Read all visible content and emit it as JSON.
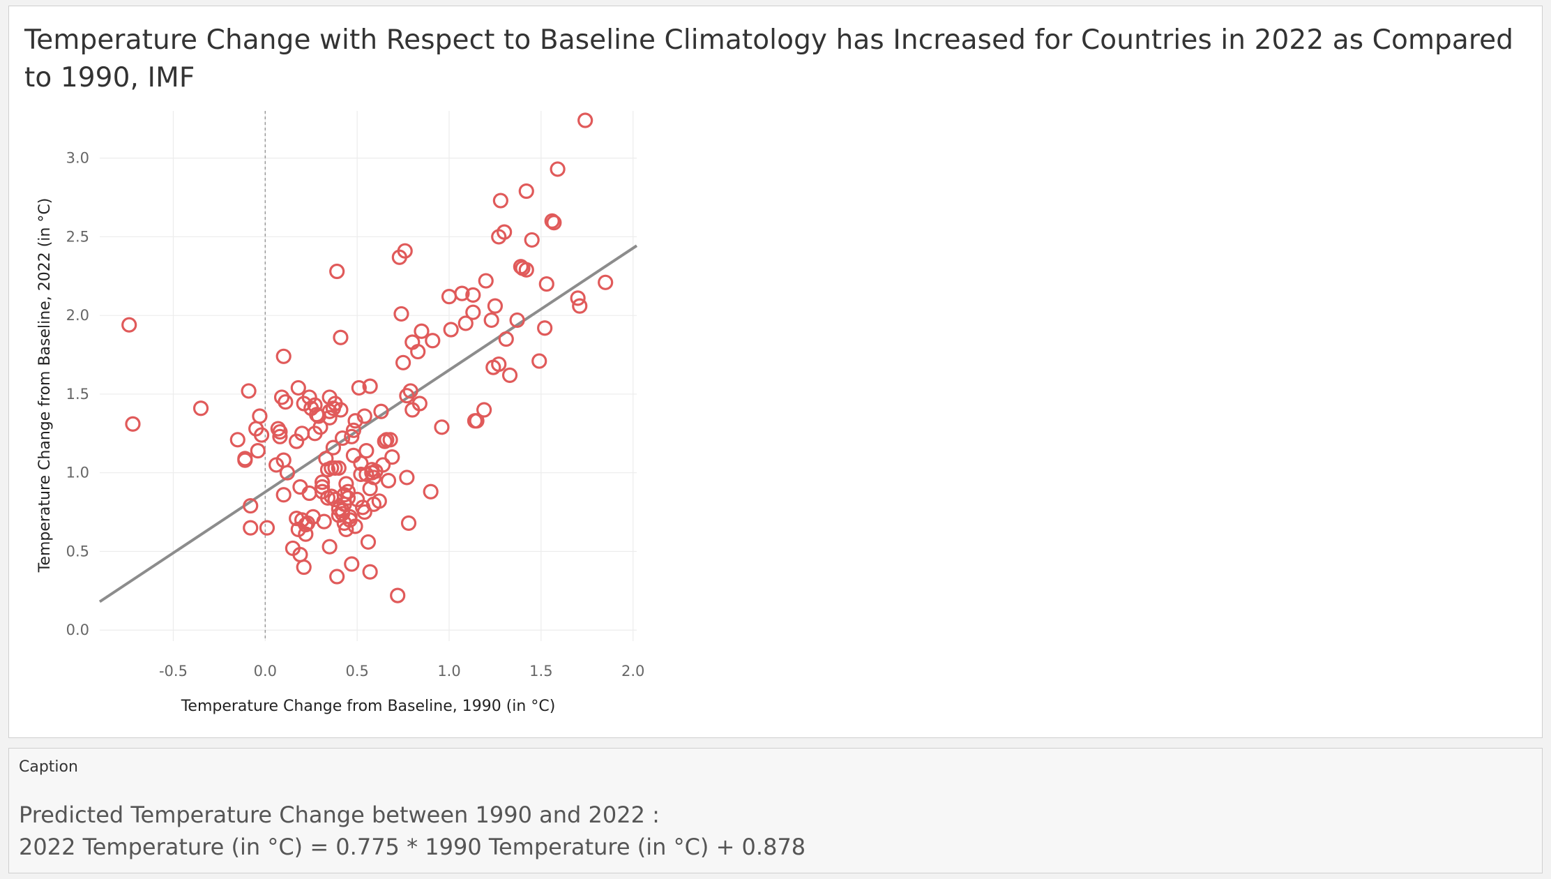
{
  "title": "Temperature Change with Respect to Baseline Climatology has Increased for Countries in 2022 as Compared to 1990, IMF",
  "chart_data": {
    "type": "scatter",
    "xlabel": "Temperature Change from Baseline, 1990 (in °C)",
    "ylabel": "Temperature Change from Baseline, 2022 (in °C)",
    "xlim": [
      -0.9,
      2.02
    ],
    "ylim": [
      -0.07,
      3.3
    ],
    "x_ticks": [
      "-0.5",
      "0.0",
      "0.5",
      "1.0",
      "1.5",
      "2.0"
    ],
    "y_ticks": [
      "0.0",
      "0.5",
      "1.0",
      "1.5",
      "2.0",
      "2.5",
      "3.0"
    ],
    "reference_line_x": 0,
    "grid": true,
    "marker": "hollow-circle",
    "marker_color": "#e05a5a",
    "trend_color": "#8c8c8c",
    "trend_line": {
      "slope": 0.775,
      "intercept": 0.878
    },
    "points": [
      [
        -0.74,
        1.94
      ],
      [
        -0.72,
        1.31
      ],
      [
        -0.35,
        1.41
      ],
      [
        -0.15,
        1.21
      ],
      [
        -0.11,
        1.08
      ],
      [
        -0.11,
        1.09
      ],
      [
        -0.09,
        1.52
      ],
      [
        -0.08,
        0.79
      ],
      [
        -0.08,
        0.65
      ],
      [
        -0.05,
        1.28
      ],
      [
        -0.04,
        1.14
      ],
      [
        -0.03,
        1.36
      ],
      [
        -0.02,
        1.24
      ],
      [
        0.01,
        0.65
      ],
      [
        0.06,
        1.05
      ],
      [
        0.07,
        1.28
      ],
      [
        0.08,
        1.26
      ],
      [
        0.08,
        1.23
      ],
      [
        0.09,
        1.48
      ],
      [
        0.1,
        1.08
      ],
      [
        0.1,
        0.86
      ],
      [
        0.1,
        1.74
      ],
      [
        0.11,
        1.45
      ],
      [
        0.12,
        1.0
      ],
      [
        0.15,
        0.52
      ],
      [
        0.17,
        1.2
      ],
      [
        0.17,
        0.71
      ],
      [
        0.18,
        0.64
      ],
      [
        0.18,
        1.54
      ],
      [
        0.19,
        0.91
      ],
      [
        0.19,
        0.48
      ],
      [
        0.2,
        1.25
      ],
      [
        0.2,
        0.7
      ],
      [
        0.21,
        1.44
      ],
      [
        0.21,
        0.4
      ],
      [
        0.22,
        0.61
      ],
      [
        0.22,
        0.67
      ],
      [
        0.23,
        0.68
      ],
      [
        0.24,
        1.48
      ],
      [
        0.24,
        0.87
      ],
      [
        0.25,
        1.41
      ],
      [
        0.26,
        0.72
      ],
      [
        0.27,
        1.25
      ],
      [
        0.27,
        1.43
      ],
      [
        0.28,
        1.37
      ],
      [
        0.29,
        1.36
      ],
      [
        0.3,
        1.29
      ],
      [
        0.31,
        0.88
      ],
      [
        0.31,
        0.94
      ],
      [
        0.31,
        0.91
      ],
      [
        0.32,
        0.69
      ],
      [
        0.33,
        1.09
      ],
      [
        0.34,
        1.02
      ],
      [
        0.34,
        0.84
      ],
      [
        0.35,
        1.35
      ],
      [
        0.35,
        1.39
      ],
      [
        0.35,
        1.48
      ],
      [
        0.35,
        0.53
      ],
      [
        0.36,
        0.85
      ],
      [
        0.36,
        1.03
      ],
      [
        0.37,
        1.16
      ],
      [
        0.37,
        1.41
      ],
      [
        0.38,
        1.03
      ],
      [
        0.38,
        1.44
      ],
      [
        0.38,
        0.83
      ],
      [
        0.39,
        0.34
      ],
      [
        0.39,
        2.28
      ],
      [
        0.4,
        1.03
      ],
      [
        0.4,
        0.73
      ],
      [
        0.4,
        0.77
      ],
      [
        0.41,
        1.86
      ],
      [
        0.41,
        1.4
      ],
      [
        0.42,
        1.22
      ],
      [
        0.42,
        0.74
      ],
      [
        0.42,
        0.76
      ],
      [
        0.43,
        0.8
      ],
      [
        0.43,
        0.86
      ],
      [
        0.43,
        0.68
      ],
      [
        0.44,
        0.64
      ],
      [
        0.44,
        0.93
      ],
      [
        0.45,
        0.84
      ],
      [
        0.45,
        0.88
      ],
      [
        0.46,
        0.72
      ],
      [
        0.46,
        0.7
      ],
      [
        0.47,
        0.42
      ],
      [
        0.47,
        1.23
      ],
      [
        0.48,
        1.27
      ],
      [
        0.48,
        1.11
      ],
      [
        0.49,
        0.66
      ],
      [
        0.49,
        1.33
      ],
      [
        0.5,
        0.83
      ],
      [
        0.51,
        1.54
      ],
      [
        0.52,
        0.99
      ],
      [
        0.52,
        1.06
      ],
      [
        0.53,
        0.78
      ],
      [
        0.54,
        1.36
      ],
      [
        0.54,
        0.75
      ],
      [
        0.55,
        0.99
      ],
      [
        0.55,
        1.14
      ],
      [
        0.56,
        0.56
      ],
      [
        0.57,
        0.37
      ],
      [
        0.57,
        1.55
      ],
      [
        0.57,
        0.9
      ],
      [
        0.58,
        1.0
      ],
      [
        0.58,
        1.02
      ],
      [
        0.59,
        0.97
      ],
      [
        0.59,
        0.8
      ],
      [
        0.6,
        1.01
      ],
      [
        0.62,
        0.82
      ],
      [
        0.63,
        1.39
      ],
      [
        0.64,
        1.05
      ],
      [
        0.65,
        1.2
      ],
      [
        0.66,
        1.21
      ],
      [
        0.67,
        0.95
      ],
      [
        0.68,
        1.21
      ],
      [
        0.69,
        1.1
      ],
      [
        0.72,
        0.22
      ],
      [
        0.73,
        2.37
      ],
      [
        0.74,
        2.01
      ],
      [
        0.75,
        1.7
      ],
      [
        0.76,
        2.41
      ],
      [
        0.77,
        1.49
      ],
      [
        0.77,
        0.97
      ],
      [
        0.78,
        0.68
      ],
      [
        0.79,
        1.52
      ],
      [
        0.8,
        1.83
      ],
      [
        0.8,
        1.4
      ],
      [
        0.83,
        1.77
      ],
      [
        0.84,
        1.44
      ],
      [
        0.85,
        1.9
      ],
      [
        0.91,
        1.84
      ],
      [
        0.9,
        0.88
      ],
      [
        0.96,
        1.29
      ],
      [
        1.0,
        2.12
      ],
      [
        1.01,
        1.91
      ],
      [
        1.07,
        2.14
      ],
      [
        1.09,
        1.95
      ],
      [
        1.13,
        2.13
      ],
      [
        1.13,
        2.02
      ],
      [
        1.14,
        1.33
      ],
      [
        1.15,
        1.33
      ],
      [
        1.19,
        1.4
      ],
      [
        1.2,
        2.22
      ],
      [
        1.23,
        1.97
      ],
      [
        1.24,
        1.67
      ],
      [
        1.25,
        2.06
      ],
      [
        1.27,
        1.69
      ],
      [
        1.27,
        2.5
      ],
      [
        1.28,
        2.73
      ],
      [
        1.3,
        2.53
      ],
      [
        1.31,
        1.85
      ],
      [
        1.33,
        1.62
      ],
      [
        1.37,
        1.97
      ],
      [
        1.39,
        2.31
      ],
      [
        1.4,
        2.3
      ],
      [
        1.42,
        2.29
      ],
      [
        1.42,
        2.79
      ],
      [
        1.45,
        2.48
      ],
      [
        1.49,
        1.71
      ],
      [
        1.52,
        1.92
      ],
      [
        1.53,
        2.2
      ],
      [
        1.56,
        2.6
      ],
      [
        1.57,
        2.59
      ],
      [
        1.59,
        2.93
      ],
      [
        1.7,
        2.11
      ],
      [
        1.71,
        2.06
      ],
      [
        1.74,
        3.24
      ],
      [
        1.85,
        2.21
      ]
    ]
  },
  "caption": {
    "label": "Caption",
    "line1": "Predicted Temperature Change between 1990 and 2022 :",
    "line2": "2022 Temperature (in °C) = 0.775 * 1990 Temperature (in °C) + 0.878"
  }
}
